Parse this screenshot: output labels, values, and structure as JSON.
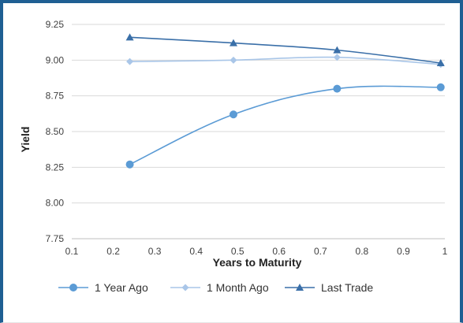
{
  "chart_data": {
    "type": "line",
    "title": "",
    "xlabel": "Years to Maturity",
    "ylabel": "Yield",
    "xlim": [
      0.1,
      1
    ],
    "ylim": [
      7.75,
      9.25
    ],
    "x_ticks": [
      0.1,
      0.2,
      0.3,
      0.4,
      0.5,
      0.6,
      0.7,
      0.8,
      0.9,
      1
    ],
    "x_tick_labels": [
      "0.1",
      "0.2",
      "0.3",
      "0.4",
      "0.5",
      "0.6",
      "0.7",
      "0.8",
      "0.9",
      "1"
    ],
    "y_ticks": [
      7.75,
      8.0,
      8.25,
      8.5,
      8.75,
      9.0,
      9.25
    ],
    "y_tick_labels": [
      "7.75",
      "8.00",
      "8.25",
      "8.50",
      "8.75",
      "9.00",
      "9.25"
    ],
    "grid": "horizontal",
    "legend_position": "bottom",
    "series": [
      {
        "name": "1 Year Ago",
        "marker": "circle",
        "color": "#5b9bd5",
        "x": [
          0.24,
          0.49,
          0.74,
          0.99
        ],
        "y": [
          8.27,
          8.62,
          8.8,
          8.81
        ]
      },
      {
        "name": "1 Month Ago",
        "marker": "diamond",
        "color": "#a9c6e8",
        "x": [
          0.24,
          0.49,
          0.74,
          0.99
        ],
        "y": [
          8.99,
          9.0,
          9.02,
          8.97
        ]
      },
      {
        "name": "Last Trade",
        "marker": "triangle",
        "color": "#3a6fa8",
        "x": [
          0.24,
          0.49,
          0.74,
          0.99
        ],
        "y": [
          9.16,
          9.12,
          9.07,
          8.98
        ]
      }
    ]
  }
}
